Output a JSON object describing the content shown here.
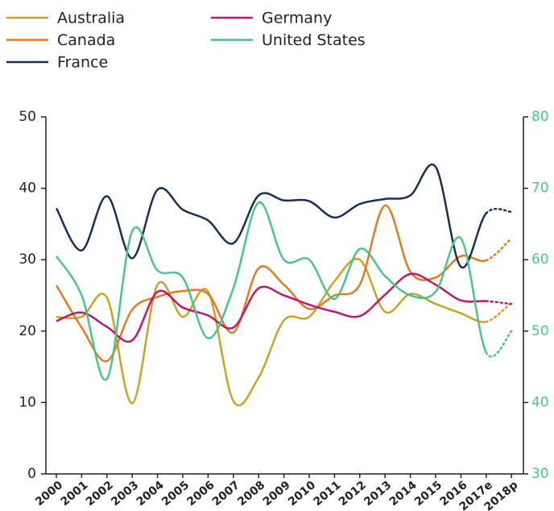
{
  "chart_data": {
    "type": "line",
    "categories": [
      "2000",
      "2001",
      "2002",
      "2003",
      "2004",
      "2005",
      "2006",
      "2007",
      "2008",
      "2009",
      "2010",
      "2011",
      "2012",
      "2013",
      "2014",
      "2015",
      "2016",
      "2017e",
      "2018p"
    ],
    "projection_start": "2017e",
    "series": [
      {
        "name": "Australia",
        "color": "#c9a227",
        "values": [
          22,
          22,
          24.7,
          9.9,
          26.5,
          22,
          25.5,
          10.2,
          13.5,
          21.5,
          22,
          27,
          30,
          22.7,
          25.2,
          23.8,
          22.5,
          21.3,
          24
        ]
      },
      {
        "name": "Canada",
        "color": "#e07b24",
        "values": [
          26.4,
          20.5,
          15.8,
          23,
          24.8,
          25.6,
          25.2,
          19.8,
          28.8,
          26.5,
          23.1,
          25,
          26.5,
          37.6,
          28.3,
          27.5,
          30.5,
          29.9,
          33
        ]
      },
      {
        "name": "France",
        "color": "#1b2f52",
        "values": [
          37.2,
          31.3,
          38.9,
          30.2,
          39.8,
          37,
          35.5,
          32.3,
          39,
          38.3,
          38.2,
          35.9,
          37.8,
          38.5,
          39,
          43,
          29,
          36.5,
          36.7
        ]
      },
      {
        "name": "Germany",
        "color": "#c0176e",
        "values": [
          21.4,
          22.6,
          20.6,
          18.7,
          25.5,
          23.3,
          22.2,
          20.5,
          26,
          25,
          23.7,
          22.7,
          22.1,
          25.1,
          28,
          26.5,
          24.3,
          24.2,
          23.8
        ]
      },
      {
        "name": "United States",
        "color": "#4fc18f",
        "axis": "y2",
        "values": [
          60.5,
          55,
          43.3,
          64,
          58.5,
          57.5,
          49,
          56,
          68,
          60,
          60,
          54.5,
          61.5,
          57.7,
          55,
          55.5,
          63,
          47,
          50
        ]
      }
    ],
    "ylim": [
      0,
      50
    ],
    "yticks": [
      0,
      10,
      20,
      30,
      40,
      50
    ],
    "y2lim": [
      30,
      80
    ],
    "y2ticks": [
      30,
      40,
      50,
      60,
      70,
      80
    ],
    "y2color": "#4fc18f"
  }
}
